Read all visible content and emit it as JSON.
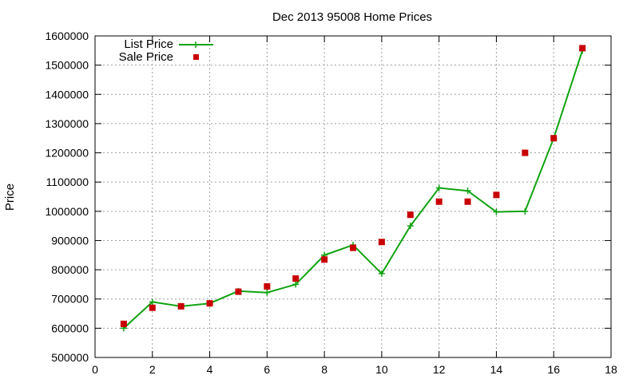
{
  "chart_data": {
    "type": "line",
    "title": "Dec 2013 95008 Home Prices",
    "xlabel": "",
    "ylabel": "Price",
    "xlim": [
      0,
      18
    ],
    "ylim": [
      500000,
      1600000
    ],
    "x_ticks": [
      "0",
      "2",
      "4",
      "6",
      "8",
      "10",
      "12",
      "14",
      "16",
      "18"
    ],
    "y_ticks": [
      "500000",
      "600000",
      "700000",
      "800000",
      "900000",
      "1000000",
      "1100000",
      "1200000",
      "1300000",
      "1400000",
      "1500000",
      "1600000"
    ],
    "grid": true,
    "legend_position": "top-left",
    "series": [
      {
        "name": "List Price",
        "style": "line-with-plus-markers",
        "color": "#11a311",
        "x": [
          1,
          2,
          3,
          4,
          5,
          6,
          7,
          8,
          9,
          10,
          11,
          12,
          13,
          14,
          15,
          16,
          17
        ],
        "values": [
          600000,
          690000,
          675000,
          685000,
          727000,
          722000,
          750000,
          850000,
          885000,
          787000,
          950000,
          1080000,
          1070000,
          998000,
          1000000,
          1250000,
          1550000
        ]
      },
      {
        "name": "Sale Price",
        "style": "square-points",
        "color": "#c80000",
        "x": [
          1,
          2,
          3,
          4,
          5,
          6,
          7,
          8,
          9,
          10,
          11,
          12,
          13,
          14,
          15,
          16,
          17
        ],
        "values": [
          615000,
          670000,
          675000,
          685000,
          725000,
          743000,
          770000,
          835000,
          875000,
          895000,
          988000,
          1033000,
          1033000,
          1056000,
          1200000,
          1250000,
          1558000
        ]
      }
    ]
  }
}
